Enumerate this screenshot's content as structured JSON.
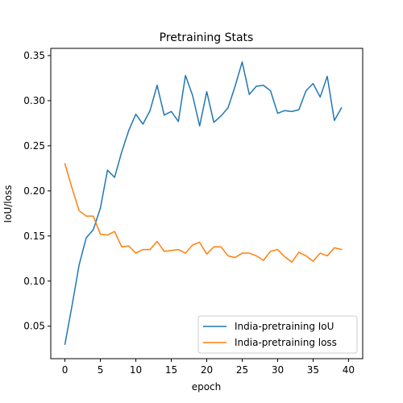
{
  "chart_data": {
    "type": "line",
    "title": "Pretraining Stats",
    "xlabel": "epoch",
    "ylabel": "IoU/loss",
    "xlim": [
      -2,
      42
    ],
    "ylim": [
      0.014,
      0.358
    ],
    "xticks": [
      0,
      5,
      10,
      15,
      20,
      25,
      30,
      35,
      40
    ],
    "yticks": [
      0.05,
      0.1,
      0.15,
      0.2,
      0.25,
      0.3,
      0.35
    ],
    "ytick_labels": [
      "0.05",
      "0.10",
      "0.15",
      "0.20",
      "0.25",
      "0.30",
      "0.35"
    ],
    "legend_position": "lower-right",
    "x": [
      0,
      1,
      2,
      3,
      4,
      5,
      6,
      7,
      8,
      9,
      10,
      11,
      12,
      13,
      14,
      15,
      16,
      17,
      18,
      19,
      20,
      21,
      22,
      23,
      24,
      25,
      26,
      27,
      28,
      29,
      30,
      31,
      32,
      33,
      34,
      35,
      36,
      37,
      38,
      39
    ],
    "series": [
      {
        "name": "India-pretraining IoU",
        "color": "#1f77b4",
        "values": [
          0.03,
          0.073,
          0.118,
          0.148,
          0.157,
          0.181,
          0.223,
          0.215,
          0.243,
          0.267,
          0.285,
          0.274,
          0.289,
          0.317,
          0.284,
          0.288,
          0.277,
          0.328,
          0.306,
          0.272,
          0.31,
          0.276,
          0.283,
          0.292,
          0.316,
          0.343,
          0.307,
          0.316,
          0.317,
          0.311,
          0.286,
          0.289,
          0.288,
          0.29,
          0.311,
          0.319,
          0.304,
          0.327,
          0.278,
          0.292
        ]
      },
      {
        "name": "India-pretraining loss",
        "color": "#ff7f0e",
        "values": [
          0.23,
          0.203,
          0.178,
          0.172,
          0.172,
          0.152,
          0.151,
          0.155,
          0.138,
          0.139,
          0.131,
          0.135,
          0.135,
          0.144,
          0.133,
          0.134,
          0.135,
          0.131,
          0.14,
          0.143,
          0.13,
          0.138,
          0.138,
          0.128,
          0.126,
          0.131,
          0.131,
          0.128,
          0.123,
          0.133,
          0.135,
          0.127,
          0.121,
          0.132,
          0.128,
          0.122,
          0.131,
          0.128,
          0.137,
          0.135
        ]
      }
    ]
  }
}
